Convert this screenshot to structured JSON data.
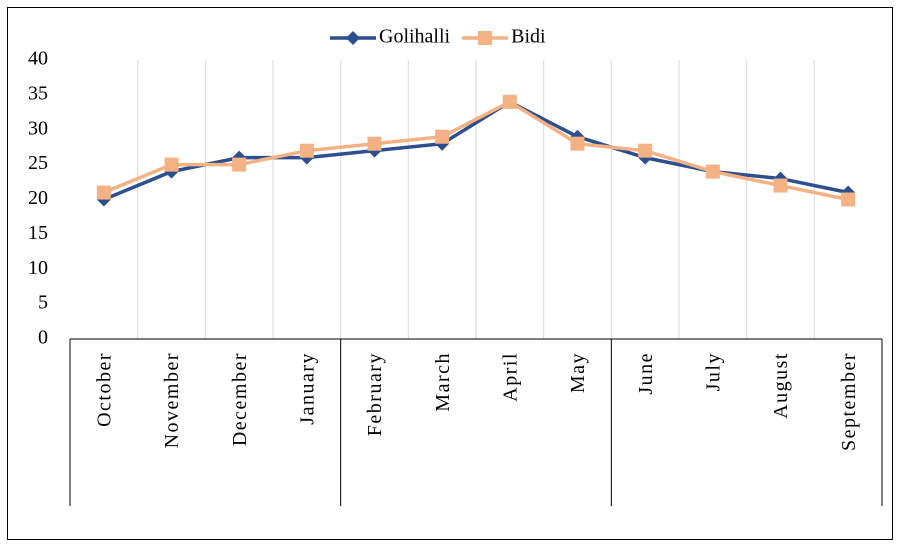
{
  "chart_data": {
    "type": "line",
    "categories": [
      "October",
      "November",
      "December",
      "January",
      "February",
      "March",
      "April",
      "May",
      "June",
      "July",
      "August",
      "September"
    ],
    "series": [
      {
        "name": "Golihalli",
        "color": "#2e4f8f",
        "marker": "diamond",
        "values": [
          20,
          24,
          26,
          26,
          27,
          28,
          34,
          29,
          26,
          24,
          23,
          21
        ]
      },
      {
        "name": "Bidi",
        "color": "#f4b183",
        "marker": "square",
        "values": [
          21,
          25,
          25,
          27,
          28,
          29,
          34,
          28,
          27,
          24,
          22,
          20
        ]
      }
    ],
    "ylim": [
      0,
      40
    ],
    "yticks": [
      0,
      5,
      10,
      15,
      20,
      25,
      30,
      35,
      40
    ],
    "grid": true,
    "legend": "top"
  }
}
